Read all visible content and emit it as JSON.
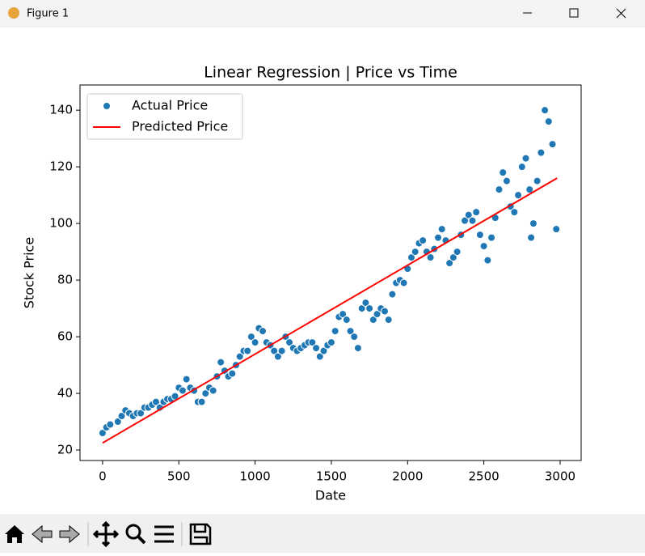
{
  "window_title": "Figure 1",
  "chart_data": {
    "type": "scatter",
    "title": "Linear Regression | Price vs Time",
    "x_label": "Date",
    "y_label": "Stock Price",
    "xlim": [
      -148,
      3138
    ],
    "ylim": [
      16.3,
      148.9
    ],
    "xticks": [
      0,
      500,
      1000,
      1500,
      2000,
      2500,
      3000
    ],
    "yticks": [
      20,
      40,
      60,
      80,
      100,
      120,
      140
    ],
    "legend": "upper left",
    "series": [
      {
        "name": "Actual Price",
        "type": "scatter",
        "color": "#1f77b4",
        "x": [
          0,
          25,
          50,
          100,
          125,
          150,
          175,
          200,
          225,
          250,
          275,
          300,
          325,
          350,
          375,
          400,
          425,
          450,
          475,
          500,
          525,
          550,
          575,
          600,
          625,
          650,
          675,
          700,
          725,
          750,
          775,
          800,
          825,
          850,
          875,
          900,
          925,
          950,
          975,
          1000,
          1025,
          1050,
          1075,
          1100,
          1125,
          1150,
          1175,
          1200,
          1225,
          1250,
          1275,
          1300,
          1325,
          1350,
          1375,
          1400,
          1425,
          1450,
          1475,
          1500,
          1525,
          1550,
          1575,
          1600,
          1625,
          1650,
          1675,
          1700,
          1725,
          1750,
          1775,
          1800,
          1825,
          1850,
          1875,
          1900,
          1925,
          1950,
          1975,
          2000,
          2025,
          2050,
          2075,
          2100,
          2125,
          2150,
          2175,
          2200,
          2225,
          2250,
          2275,
          2300,
          2325,
          2350,
          2375,
          2400,
          2425,
          2450,
          2475,
          2500,
          2525,
          2550,
          2575,
          2600,
          2625,
          2650,
          2675,
          2700,
          2725,
          2750,
          2775,
          2800,
          2810,
          2825,
          2850,
          2875,
          2900,
          2925,
          2950,
          2975
        ],
        "values": [
          26,
          28,
          29,
          30,
          32,
          34,
          33,
          32,
          33,
          33,
          35,
          35,
          36,
          37,
          35,
          37,
          38,
          38,
          39,
          42,
          41,
          45,
          42,
          41,
          37,
          37,
          40,
          42,
          41,
          46,
          51,
          48,
          46,
          47,
          50,
          53,
          55,
          55,
          60,
          58,
          63,
          62,
          58,
          57,
          55,
          53,
          55,
          60,
          58,
          56,
          55,
          56,
          57,
          58,
          58,
          56,
          53,
          55,
          57,
          58,
          62,
          67,
          68,
          66,
          62,
          60,
          56,
          70,
          72,
          70,
          66,
          68,
          70,
          69,
          66,
          75,
          79,
          80,
          79,
          84,
          88,
          90,
          93,
          94,
          90,
          88,
          91,
          95,
          98,
          94,
          86,
          88,
          90,
          96,
          101,
          103,
          101,
          104,
          96,
          92,
          87,
          95,
          102,
          112,
          118,
          115,
          106,
          104,
          110,
          120,
          123,
          112,
          95,
          100,
          115,
          125,
          140,
          136,
          128,
          98
        ]
      },
      {
        "name": "Predicted Price",
        "type": "line",
        "color": "#ff0000",
        "x": [
          0,
          2980
        ],
        "values": [
          22.5,
          116
        ]
      }
    ]
  }
}
